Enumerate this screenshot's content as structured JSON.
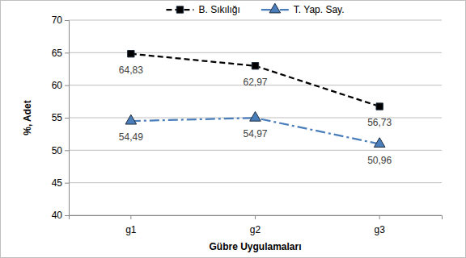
{
  "chart_data": {
    "type": "line",
    "categories": [
      "g1",
      "g2",
      "g3"
    ],
    "series": [
      {
        "name": "B. Sıkılığı",
        "color": "#000000",
        "marker": "square",
        "line_style": "dashed",
        "values": [
          64.83,
          62.97,
          56.73
        ],
        "value_labels": [
          "64,83",
          "62,97",
          "56,73"
        ]
      },
      {
        "name": "T. Yap. Say.",
        "color": "#4a7ebb",
        "marker": "triangle",
        "line_style": "dashdot",
        "values": [
          54.49,
          54.97,
          50.96
        ],
        "value_labels": [
          "54,49",
          "54,97",
          "50,96"
        ]
      }
    ],
    "xlabel": "Gübre Uygulamaları",
    "ylabel": "%, Adet",
    "ylim": [
      40,
      70
    ],
    "yticks": [
      40,
      45,
      50,
      55,
      60,
      65,
      70
    ],
    "grid": true,
    "legend": "top",
    "data_labels": true
  }
}
